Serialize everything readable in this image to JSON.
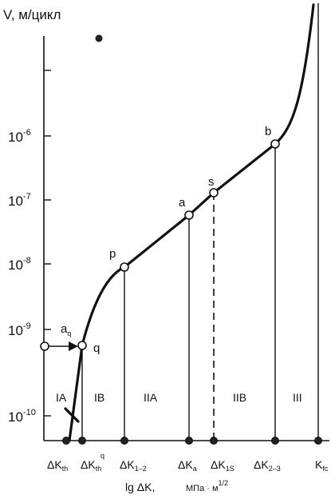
{
  "y_axis_label": "V, м/цикл",
  "y_ticks": [
    {
      "base": "10",
      "exp": "-6"
    },
    {
      "base": "10",
      "exp": "-7"
    },
    {
      "base": "10",
      "exp": "-8"
    },
    {
      "base": "10",
      "exp": "-9"
    },
    {
      "base": "10",
      "exp": "-10"
    }
  ],
  "point_labels": {
    "aq_main": "a",
    "aq_sub": "q",
    "q": "q",
    "p": "p",
    "a": "a",
    "s": "s",
    "b": "b"
  },
  "regions": [
    "IA",
    "IB",
    "IIA",
    "IIB",
    "III"
  ],
  "x_ticks": [
    {
      "main": "ΔK",
      "sub": "th",
      "sup": ""
    },
    {
      "main": "ΔK",
      "sub": "th",
      "sup": "q"
    },
    {
      "main": "ΔK",
      "sub": "1–2",
      "sup": ""
    },
    {
      "main": "ΔK",
      "sub": "a",
      "sup": ""
    },
    {
      "main": "ΔK",
      "sub": "1S",
      "sup": ""
    },
    {
      "main": "ΔK",
      "sub": "2–3",
      "sup": ""
    },
    {
      "main": "K",
      "sub": "fc",
      "sup": ""
    }
  ],
  "x_axis_label": {
    "main": "lg ΔK,",
    "unit": "МПа · м",
    "unit_exp": "1/2"
  }
}
